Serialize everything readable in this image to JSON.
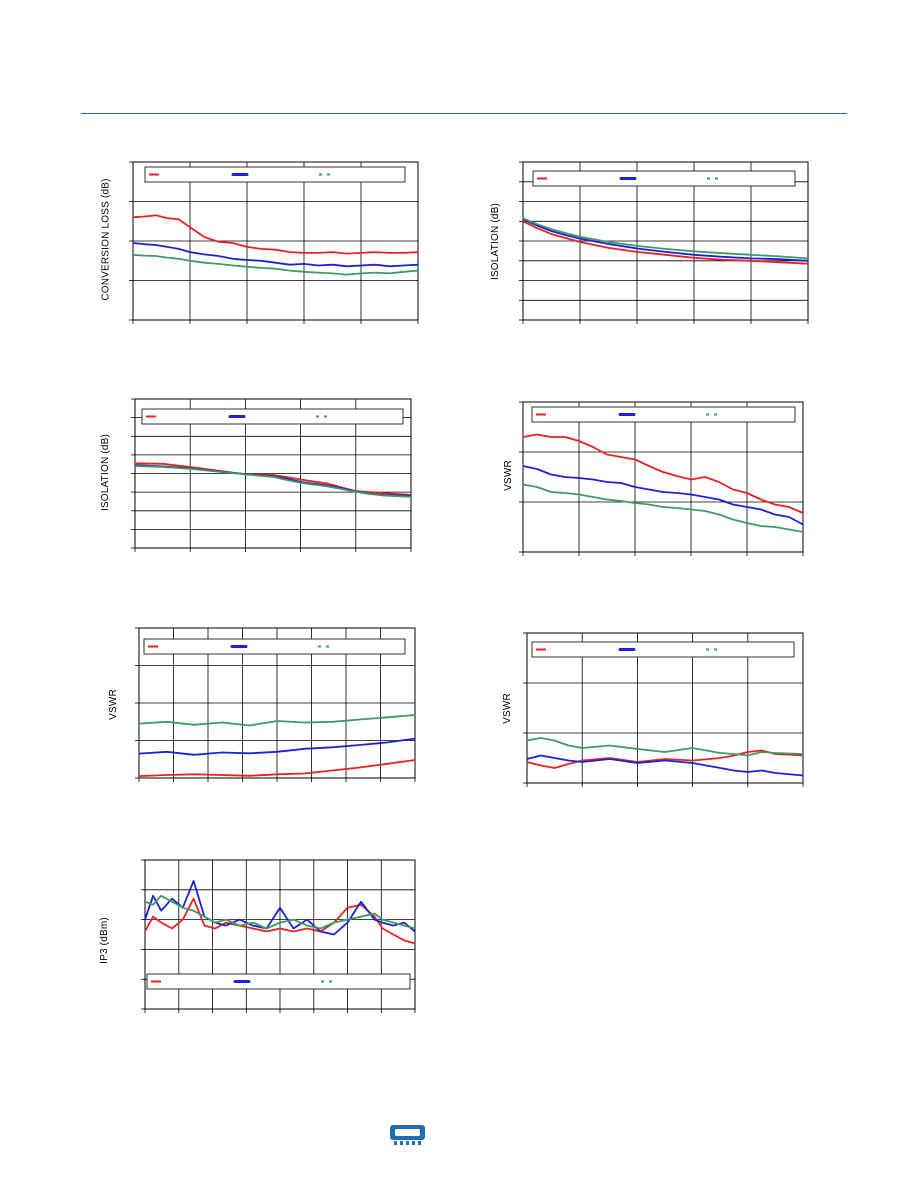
{
  "charts": [
    {
      "id": "conversion-loss",
      "ylabel": "CONVERSION LOSS (dB)",
      "legend": [
        {
          "color": "#e8221e",
          "style": "solid"
        },
        {
          "color": "#1e22d6",
          "style": "bold"
        },
        {
          "color": "#3f9a63",
          "style": "dotted"
        }
      ]
    },
    {
      "id": "isolation-top-right",
      "ylabel": "ISOLATION (dB)",
      "legend": [
        {
          "color": "#e8221e",
          "style": "solid"
        },
        {
          "color": "#1e22d6",
          "style": "bold"
        },
        {
          "color": "#3f9a63",
          "style": "dotted"
        }
      ]
    },
    {
      "id": "isolation-mid-left",
      "ylabel": "ISOLATION (dB)",
      "legend": [
        {
          "color": "#e8221e",
          "style": "solid"
        },
        {
          "color": "#1e22d6",
          "style": "bold"
        },
        {
          "color": "#3f9a63",
          "style": "dotted"
        }
      ]
    },
    {
      "id": "vswr-mid-right",
      "ylabel": "VSWR",
      "legend": [
        {
          "color": "#e8221e",
          "style": "solid"
        },
        {
          "color": "#1e22d6",
          "style": "bold"
        },
        {
          "color": "#3f9a63",
          "style": "dotted"
        }
      ]
    },
    {
      "id": "vswr-lower-left",
      "ylabel": "VSWR",
      "legend": [
        {
          "color": "#e8221e",
          "style": "solid"
        },
        {
          "color": "#1e22d6",
          "style": "bold"
        },
        {
          "color": "#3f9a63",
          "style": "dotted"
        }
      ]
    },
    {
      "id": "vswr-lower-right",
      "ylabel": "VSWR",
      "legend": [
        {
          "color": "#e8221e",
          "style": "solid"
        },
        {
          "color": "#1e22d6",
          "style": "bold"
        },
        {
          "color": "#3f9a63",
          "style": "dotted"
        }
      ]
    },
    {
      "id": "ip3",
      "ylabel": "IP3 (dBm)",
      "legend": [
        {
          "color": "#e8221e",
          "style": "solid"
        },
        {
          "color": "#1e22d6",
          "style": "bold"
        },
        {
          "color": "#3f9a63",
          "style": "dotted"
        }
      ]
    }
  ],
  "chart_data": [
    {
      "type": "line",
      "ylabel": "CONVERSION LOSS (dB)",
      "xlim": [
        0,
        1
      ],
      "ylim": [
        0,
        4
      ],
      "grid": true,
      "legend_position": "top",
      "series": [
        {
          "color": "#e8221e",
          "x": [
            0.0,
            0.04,
            0.08,
            0.12,
            0.16,
            0.2,
            0.25,
            0.3,
            0.35,
            0.4,
            0.45,
            0.5,
            0.55,
            0.6,
            0.65,
            0.7,
            0.75,
            0.8,
            0.85,
            0.9,
            0.95,
            1.0
          ],
          "y": [
            2.6,
            2.62,
            2.65,
            2.58,
            2.55,
            2.35,
            2.1,
            1.98,
            1.95,
            1.85,
            1.8,
            1.78,
            1.72,
            1.7,
            1.7,
            1.72,
            1.68,
            1.7,
            1.72,
            1.7,
            1.7,
            1.72
          ]
        },
        {
          "color": "#1e22d6",
          "x": [
            0.0,
            0.04,
            0.08,
            0.12,
            0.16,
            0.2,
            0.25,
            0.3,
            0.35,
            0.4,
            0.45,
            0.5,
            0.55,
            0.6,
            0.65,
            0.7,
            0.75,
            0.8,
            0.85,
            0.9,
            0.95,
            1.0
          ],
          "y": [
            1.95,
            1.92,
            1.9,
            1.85,
            1.8,
            1.72,
            1.66,
            1.62,
            1.55,
            1.52,
            1.5,
            1.45,
            1.4,
            1.42,
            1.38,
            1.4,
            1.36,
            1.38,
            1.4,
            1.36,
            1.38,
            1.4
          ]
        },
        {
          "color": "#3f9a63",
          "x": [
            0.0,
            0.04,
            0.08,
            0.12,
            0.16,
            0.2,
            0.25,
            0.3,
            0.35,
            0.4,
            0.45,
            0.5,
            0.55,
            0.6,
            0.65,
            0.7,
            0.75,
            0.8,
            0.85,
            0.9,
            0.95,
            1.0
          ],
          "y": [
            1.65,
            1.63,
            1.62,
            1.58,
            1.55,
            1.5,
            1.45,
            1.42,
            1.38,
            1.35,
            1.32,
            1.3,
            1.25,
            1.22,
            1.2,
            1.18,
            1.15,
            1.18,
            1.2,
            1.18,
            1.22,
            1.25
          ]
        }
      ]
    },
    {
      "type": "line",
      "ylabel": "ISOLATION (dB)",
      "xlim": [
        0,
        1
      ],
      "ylim": [
        0,
        8
      ],
      "grid": true,
      "legend_position": "top",
      "series": [
        {
          "color": "#e8221e",
          "x": [
            0.0,
            0.05,
            0.1,
            0.15,
            0.2,
            0.3,
            0.4,
            0.5,
            0.6,
            0.7,
            0.8,
            0.9,
            1.0
          ],
          "y": [
            5.0,
            4.65,
            4.35,
            4.15,
            3.95,
            3.65,
            3.45,
            3.3,
            3.15,
            3.05,
            3.0,
            2.92,
            2.85
          ]
        },
        {
          "color": "#1e22d6",
          "x": [
            0.0,
            0.05,
            0.1,
            0.15,
            0.2,
            0.3,
            0.4,
            0.5,
            0.6,
            0.7,
            0.8,
            0.9,
            1.0
          ],
          "y": [
            5.1,
            4.78,
            4.5,
            4.3,
            4.12,
            3.85,
            3.62,
            3.45,
            3.3,
            3.2,
            3.12,
            3.08,
            3.0
          ]
        },
        {
          "color": "#3f9a63",
          "x": [
            0.0,
            0.05,
            0.1,
            0.15,
            0.2,
            0.3,
            0.4,
            0.5,
            0.6,
            0.7,
            0.8,
            0.9,
            1.0
          ],
          "y": [
            5.15,
            4.85,
            4.6,
            4.4,
            4.22,
            3.95,
            3.75,
            3.6,
            3.48,
            3.38,
            3.3,
            3.22,
            3.12
          ]
        }
      ]
    },
    {
      "type": "line",
      "ylabel": "ISOLATION (dB)",
      "xlim": [
        0,
        1
      ],
      "ylim": [
        0,
        8
      ],
      "grid": true,
      "legend_position": "top",
      "series": [
        {
          "color": "#e8221e",
          "x": [
            0.0,
            0.1,
            0.2,
            0.3,
            0.4,
            0.5,
            0.55,
            0.6,
            0.7,
            0.8,
            0.85,
            0.9,
            1.0
          ],
          "y": [
            4.55,
            4.52,
            4.35,
            4.15,
            3.95,
            3.92,
            3.8,
            3.68,
            3.45,
            3.05,
            3.0,
            2.95,
            2.85
          ]
        },
        {
          "color": "#1e22d6",
          "x": [
            0.0,
            0.1,
            0.2,
            0.3,
            0.4,
            0.5,
            0.55,
            0.6,
            0.7,
            0.8,
            0.85,
            0.9,
            1.0
          ],
          "y": [
            4.45,
            4.38,
            4.28,
            4.12,
            3.96,
            3.85,
            3.72,
            3.55,
            3.35,
            3.05,
            2.92,
            2.85,
            2.8
          ]
        },
        {
          "color": "#3f9a63",
          "x": [
            0.0,
            0.1,
            0.2,
            0.3,
            0.4,
            0.5,
            0.55,
            0.6,
            0.7,
            0.8,
            0.85,
            0.9,
            1.0
          ],
          "y": [
            4.4,
            4.35,
            4.25,
            4.1,
            3.95,
            3.82,
            3.65,
            3.5,
            3.3,
            3.02,
            2.9,
            2.82,
            2.75
          ]
        }
      ]
    },
    {
      "type": "line",
      "ylabel": "VSWR",
      "xlim": [
        0,
        1
      ],
      "ylim": [
        0,
        3
      ],
      "grid": true,
      "legend_position": "top",
      "series": [
        {
          "color": "#e8221e",
          "x": [
            0.0,
            0.05,
            0.1,
            0.15,
            0.2,
            0.25,
            0.3,
            0.35,
            0.4,
            0.45,
            0.5,
            0.55,
            0.6,
            0.65,
            0.7,
            0.75,
            0.8,
            0.85,
            0.9,
            0.95,
            1.0
          ],
          "y": [
            2.3,
            2.35,
            2.3,
            2.3,
            2.22,
            2.1,
            1.95,
            1.9,
            1.85,
            1.72,
            1.6,
            1.52,
            1.45,
            1.5,
            1.4,
            1.25,
            1.18,
            1.05,
            0.95,
            0.9,
            0.78
          ]
        },
        {
          "color": "#1e22d6",
          "x": [
            0.0,
            0.05,
            0.1,
            0.15,
            0.2,
            0.25,
            0.3,
            0.35,
            0.4,
            0.45,
            0.5,
            0.55,
            0.6,
            0.65,
            0.7,
            0.75,
            0.8,
            0.85,
            0.9,
            0.95,
            1.0
          ],
          "y": [
            1.72,
            1.66,
            1.55,
            1.5,
            1.48,
            1.45,
            1.4,
            1.38,
            1.3,
            1.25,
            1.2,
            1.18,
            1.15,
            1.1,
            1.05,
            0.95,
            0.9,
            0.85,
            0.75,
            0.7,
            0.55
          ]
        },
        {
          "color": "#3f9a63",
          "x": [
            0.0,
            0.05,
            0.1,
            0.15,
            0.2,
            0.25,
            0.3,
            0.35,
            0.4,
            0.45,
            0.5,
            0.55,
            0.6,
            0.65,
            0.7,
            0.75,
            0.8,
            0.85,
            0.9,
            0.95,
            1.0
          ],
          "y": [
            1.35,
            1.3,
            1.2,
            1.18,
            1.15,
            1.1,
            1.05,
            1.02,
            0.98,
            0.95,
            0.9,
            0.88,
            0.85,
            0.82,
            0.75,
            0.65,
            0.58,
            0.52,
            0.5,
            0.45,
            0.4
          ]
        }
      ]
    },
    {
      "type": "line",
      "ylabel": "VSWR",
      "xlim": [
        0,
        1
      ],
      "ylim": [
        0,
        4
      ],
      "grid": true,
      "legend_position": "top",
      "series": [
        {
          "color": "#e8221e",
          "x": [
            0.0,
            0.1,
            0.2,
            0.3,
            0.4,
            0.5,
            0.6,
            0.7,
            0.8,
            0.9,
            1.0
          ],
          "y": [
            0.05,
            0.08,
            0.1,
            0.08,
            0.06,
            0.1,
            0.12,
            0.2,
            0.28,
            0.38,
            0.48
          ]
        },
        {
          "color": "#1e22d6",
          "x": [
            0.0,
            0.1,
            0.2,
            0.3,
            0.4,
            0.5,
            0.6,
            0.7,
            0.8,
            0.9,
            1.0
          ],
          "y": [
            0.65,
            0.7,
            0.62,
            0.68,
            0.66,
            0.7,
            0.78,
            0.82,
            0.88,
            0.95,
            1.05
          ]
        },
        {
          "color": "#3f9a63",
          "x": [
            0.0,
            0.1,
            0.2,
            0.3,
            0.4,
            0.5,
            0.6,
            0.7,
            0.8,
            0.9,
            1.0
          ],
          "y": [
            1.45,
            1.5,
            1.42,
            1.48,
            1.4,
            1.52,
            1.48,
            1.5,
            1.56,
            1.62,
            1.68
          ]
        }
      ]
    },
    {
      "type": "line",
      "ylabel": "VSWR",
      "xlim": [
        0,
        1
      ],
      "ylim": [
        0,
        3
      ],
      "grid": true,
      "legend_position": "top",
      "series": [
        {
          "color": "#e8221e",
          "x": [
            0.0,
            0.05,
            0.1,
            0.15,
            0.2,
            0.3,
            0.4,
            0.5,
            0.6,
            0.7,
            0.75,
            0.8,
            0.85,
            0.9,
            1.0
          ],
          "y": [
            0.42,
            0.35,
            0.3,
            0.38,
            0.45,
            0.5,
            0.42,
            0.48,
            0.45,
            0.5,
            0.55,
            0.62,
            0.65,
            0.58,
            0.55
          ]
        },
        {
          "color": "#1e22d6",
          "x": [
            0.0,
            0.05,
            0.1,
            0.15,
            0.2,
            0.3,
            0.4,
            0.5,
            0.6,
            0.7,
            0.75,
            0.8,
            0.85,
            0.9,
            1.0
          ],
          "y": [
            0.48,
            0.55,
            0.5,
            0.45,
            0.42,
            0.48,
            0.4,
            0.45,
            0.4,
            0.3,
            0.25,
            0.22,
            0.25,
            0.2,
            0.15
          ]
        },
        {
          "color": "#3f9a63",
          "x": [
            0.0,
            0.05,
            0.1,
            0.15,
            0.2,
            0.3,
            0.4,
            0.5,
            0.6,
            0.7,
            0.75,
            0.8,
            0.85,
            0.9,
            1.0
          ],
          "y": [
            0.85,
            0.9,
            0.85,
            0.75,
            0.7,
            0.75,
            0.68,
            0.62,
            0.7,
            0.6,
            0.58,
            0.55,
            0.62,
            0.6,
            0.58
          ]
        }
      ]
    },
    {
      "type": "line",
      "ylabel": "IP3 (dBm)",
      "xlim": [
        0,
        1
      ],
      "ylim": [
        0,
        5
      ],
      "grid": true,
      "legend_position": "bottom",
      "series": [
        {
          "color": "#e8221e",
          "x": [
            0.0,
            0.03,
            0.06,
            0.1,
            0.14,
            0.18,
            0.22,
            0.26,
            0.3,
            0.35,
            0.4,
            0.45,
            0.5,
            0.55,
            0.6,
            0.65,
            0.7,
            0.75,
            0.8,
            0.85,
            0.88,
            0.92,
            0.96,
            1.0
          ],
          "y": [
            2.6,
            3.1,
            2.9,
            2.7,
            3.0,
            3.7,
            2.8,
            2.7,
            2.9,
            2.8,
            2.7,
            2.6,
            2.7,
            2.6,
            2.7,
            2.6,
            2.9,
            3.4,
            3.5,
            3.1,
            2.7,
            2.5,
            2.3,
            2.2
          ]
        },
        {
          "color": "#1e22d6",
          "x": [
            0.0,
            0.03,
            0.06,
            0.1,
            0.14,
            0.18,
            0.22,
            0.26,
            0.3,
            0.35,
            0.4,
            0.45,
            0.5,
            0.55,
            0.6,
            0.65,
            0.7,
            0.75,
            0.8,
            0.85,
            0.88,
            0.92,
            0.96,
            1.0
          ],
          "y": [
            3.0,
            3.8,
            3.3,
            3.7,
            3.4,
            4.3,
            3.1,
            2.9,
            2.8,
            3.0,
            2.8,
            2.7,
            3.4,
            2.7,
            3.0,
            2.6,
            2.5,
            2.9,
            3.6,
            3.0,
            2.9,
            2.8,
            2.9,
            2.6
          ]
        },
        {
          "color": "#3f9a63",
          "x": [
            0.0,
            0.03,
            0.06,
            0.1,
            0.14,
            0.18,
            0.22,
            0.26,
            0.3,
            0.35,
            0.4,
            0.45,
            0.5,
            0.55,
            0.6,
            0.65,
            0.7,
            0.75,
            0.8,
            0.85,
            0.88,
            0.92,
            0.96,
            1.0
          ],
          "y": [
            3.6,
            3.5,
            3.8,
            3.6,
            3.4,
            3.3,
            3.1,
            2.9,
            3.0,
            2.8,
            2.9,
            2.7,
            2.9,
            3.0,
            2.8,
            2.7,
            2.9,
            3.0,
            3.1,
            3.2,
            3.0,
            2.9,
            2.8,
            2.7
          ]
        }
      ]
    }
  ]
}
